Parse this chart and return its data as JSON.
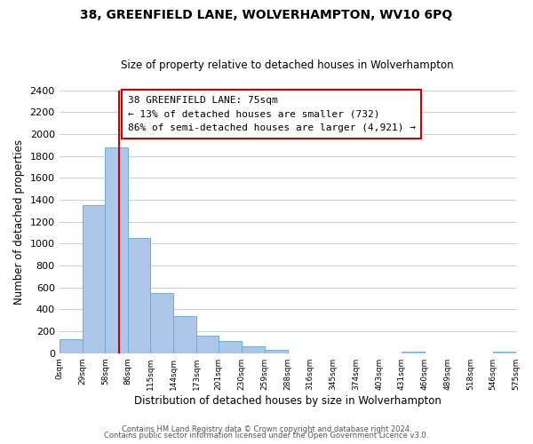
{
  "title1": "38, GREENFIELD LANE, WOLVERHAMPTON, WV10 6PQ",
  "title2": "Size of property relative to detached houses in Wolverhampton",
  "xlabel": "Distribution of detached houses by size in Wolverhampton",
  "ylabel": "Number of detached properties",
  "bar_left_edges": [
    0,
    29,
    58,
    86,
    115,
    144,
    173,
    201,
    230,
    259,
    288,
    316,
    345,
    374,
    403,
    431,
    460,
    489,
    518,
    546
  ],
  "bar_heights": [
    125,
    1350,
    1880,
    1050,
    550,
    335,
    160,
    110,
    60,
    30,
    0,
    0,
    0,
    0,
    0,
    15,
    0,
    0,
    0,
    10
  ],
  "bar_widths": [
    29,
    28,
    28,
    29,
    29,
    29,
    28,
    29,
    29,
    29,
    28,
    29,
    29,
    29,
    28,
    29,
    29,
    29,
    28,
    29
  ],
  "bar_color": "#aec6e8",
  "bar_edgecolor": "#6aaed6",
  "property_line_x": 75,
  "property_line_color": "#cc0000",
  "annotation_title": "38 GREENFIELD LANE: 75sqm",
  "annotation_line1": "← 13% of detached houses are smaller (732)",
  "annotation_line2": "86% of semi-detached houses are larger (4,921) →",
  "annotation_box_color": "#ffffff",
  "annotation_box_edgecolor": "#cc0000",
  "xlim": [
    0,
    575
  ],
  "ylim": [
    0,
    2400
  ],
  "xtick_labels": [
    "0sqm",
    "29sqm",
    "58sqm",
    "86sqm",
    "115sqm",
    "144sqm",
    "173sqm",
    "201sqm",
    "230sqm",
    "259sqm",
    "288sqm",
    "316sqm",
    "345sqm",
    "374sqm",
    "403sqm",
    "431sqm",
    "460sqm",
    "489sqm",
    "518sqm",
    "546sqm",
    "575sqm"
  ],
  "xtick_positions": [
    0,
    29,
    58,
    86,
    115,
    144,
    173,
    201,
    230,
    259,
    288,
    316,
    345,
    374,
    403,
    431,
    460,
    489,
    518,
    546,
    575
  ],
  "ytick_positions": [
    0,
    200,
    400,
    600,
    800,
    1000,
    1200,
    1400,
    1600,
    1800,
    2000,
    2200,
    2400
  ],
  "footer1": "Contains HM Land Registry data © Crown copyright and database right 2024.",
  "footer2": "Contains public sector information licensed under the Open Government Licence v3.0.",
  "background_color": "#ffffff",
  "grid_color": "#d0d0d0"
}
